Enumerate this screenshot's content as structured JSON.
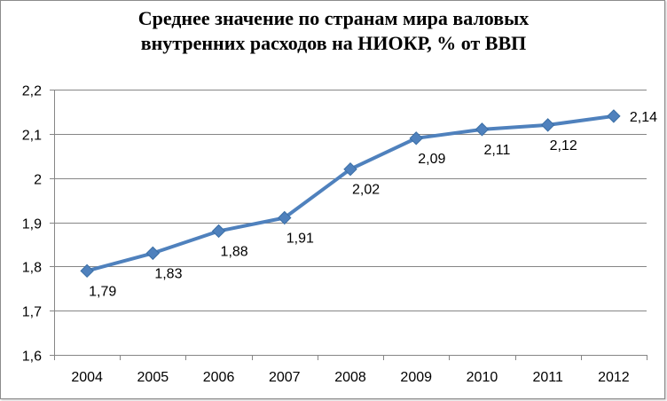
{
  "chart_data": {
    "type": "line",
    "title_lines": [
      "Среднее значение по странам мира валовых",
      "внутренних расходов на НИОКР, % от ВВП"
    ],
    "xlabel": "",
    "ylabel": "",
    "categories": [
      "2004",
      "2005",
      "2006",
      "2007",
      "2008",
      "2009",
      "2010",
      "2011",
      "2012"
    ],
    "series": [
      {
        "values": [
          1.79,
          1.83,
          1.88,
          1.91,
          2.02,
          2.09,
          2.11,
          2.12,
          2.14
        ],
        "data_labels": [
          "1,79",
          "1,83",
          "1,88",
          "1,91",
          "2,02",
          "2,09",
          "2,11",
          "2,12",
          "2,14"
        ]
      }
    ],
    "ylim": [
      1.6,
      2.2
    ],
    "yticks": [
      1.6,
      1.7,
      1.8,
      1.9,
      2.0,
      2.1,
      2.2
    ],
    "ytick_labels": [
      "1,6",
      "1,7",
      "1,8",
      "1,9",
      "2",
      "2,1",
      "2,2"
    ],
    "grid": true,
    "legend": "none",
    "line_color": "#4f81bd",
    "marker": "diamond"
  }
}
